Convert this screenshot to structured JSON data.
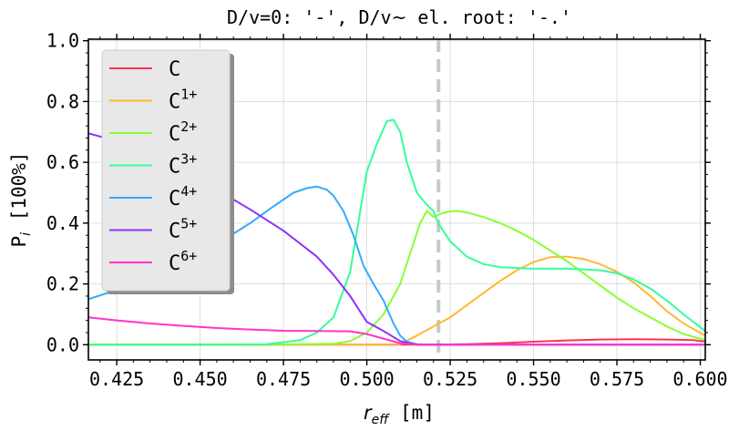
{
  "chart_data": {
    "type": "line",
    "title": "D/v=0: '-', D/v ~ el. root: '-.'",
    "title_prefix": "D/v=0: '-', D/v",
    "title_tilde": "~",
    "title_suffix": " el. root: '-.'",
    "xlabel_main": "r",
    "xlabel_sub": "eff",
    "xlabel_unit": " [m]",
    "ylabel_main": "P",
    "ylabel_sub": "i",
    "ylabel_unit": " [100%]",
    "xlim": [
      0.4165,
      0.6015
    ],
    "ylim": [
      -0.05,
      1.005
    ],
    "xticks": [
      0.425,
      0.45,
      0.475,
      0.5,
      0.525,
      0.55,
      0.575,
      0.6
    ],
    "xtick_labels": [
      "0.425",
      "0.450",
      "0.475",
      "0.500",
      "0.525",
      "0.550",
      "0.575",
      "0.600"
    ],
    "yticks": [
      0.0,
      0.2,
      0.4,
      0.6,
      0.8,
      1.0
    ],
    "ytick_labels": [
      "0.0",
      "0.2",
      "0.4",
      "0.6",
      "0.8",
      "1.0"
    ],
    "grid": true,
    "legend_position": "upper-left",
    "vline": {
      "x": 0.5215,
      "style": "dashed",
      "color": "#c8c8c8"
    },
    "series": [
      {
        "name": "C",
        "base": "C",
        "sup": "",
        "color": "#ff3355",
        "x": [
          0.4165,
          0.45,
          0.48,
          0.5,
          0.51,
          0.52,
          0.53,
          0.54,
          0.55,
          0.56,
          0.57,
          0.58,
          0.59,
          0.598,
          0.6015
        ],
        "y": [
          0.0,
          0.0,
          0.0,
          0.0,
          0.0,
          0.0,
          0.002,
          0.005,
          0.01,
          0.014,
          0.017,
          0.018,
          0.017,
          0.015,
          0.01
        ]
      },
      {
        "name": "C1+",
        "base": "C",
        "sup": "1+",
        "color": "#ffb833",
        "x": [
          0.4165,
          0.5,
          0.51,
          0.515,
          0.52,
          0.525,
          0.53,
          0.535,
          0.54,
          0.545,
          0.55,
          0.555,
          0.56,
          0.565,
          0.57,
          0.575,
          0.58,
          0.585,
          0.59,
          0.595,
          0.6015
        ],
        "y": [
          0.0,
          0.0,
          0.002,
          0.03,
          0.06,
          0.09,
          0.13,
          0.17,
          0.21,
          0.245,
          0.272,
          0.288,
          0.29,
          0.282,
          0.265,
          0.24,
          0.205,
          0.16,
          0.11,
          0.07,
          0.03
        ]
      },
      {
        "name": "C2+",
        "base": "C",
        "sup": "2+",
        "color": "#88ff33",
        "x": [
          0.4165,
          0.47,
          0.49,
          0.495,
          0.5,
          0.505,
          0.51,
          0.513,
          0.516,
          0.518,
          0.52,
          0.522,
          0.524,
          0.527,
          0.53,
          0.535,
          0.54,
          0.545,
          0.55,
          0.555,
          0.56,
          0.565,
          0.57,
          0.575,
          0.58,
          0.585,
          0.59,
          0.595,
          0.6015
        ],
        "y": [
          0.0,
          0.0,
          0.003,
          0.012,
          0.04,
          0.1,
          0.2,
          0.3,
          0.4,
          0.44,
          0.42,
          0.43,
          0.437,
          0.44,
          0.435,
          0.42,
          0.4,
          0.375,
          0.345,
          0.31,
          0.275,
          0.235,
          0.195,
          0.155,
          0.12,
          0.09,
          0.06,
          0.035,
          0.015
        ]
      },
      {
        "name": "C3+",
        "base": "C",
        "sup": "3+",
        "color": "#33ff99",
        "x": [
          0.4165,
          0.47,
          0.48,
          0.485,
          0.49,
          0.495,
          0.5,
          0.503,
          0.506,
          0.508,
          0.51,
          0.512,
          0.515,
          0.518,
          0.52,
          0.521,
          0.522,
          0.525,
          0.53,
          0.535,
          0.54,
          0.55,
          0.56,
          0.565,
          0.57,
          0.575,
          0.58,
          0.585,
          0.59,
          0.595,
          0.6015
        ],
        "y": [
          0.0,
          0.002,
          0.015,
          0.04,
          0.09,
          0.24,
          0.57,
          0.66,
          0.735,
          0.74,
          0.7,
          0.6,
          0.5,
          0.46,
          0.44,
          0.41,
          0.39,
          0.34,
          0.29,
          0.265,
          0.255,
          0.25,
          0.25,
          0.248,
          0.245,
          0.235,
          0.215,
          0.185,
          0.145,
          0.1,
          0.045
        ]
      },
      {
        "name": "C4+",
        "base": "C",
        "sup": "4+",
        "color": "#33aaff",
        "x": [
          0.4165,
          0.425,
          0.435,
          0.445,
          0.455,
          0.465,
          0.472,
          0.478,
          0.482,
          0.485,
          0.488,
          0.49,
          0.493,
          0.496,
          0.499,
          0.502,
          0.505,
          0.508,
          0.51,
          0.512,
          0.515,
          0.52,
          0.6015
        ],
        "y": [
          0.15,
          0.18,
          0.22,
          0.27,
          0.33,
          0.4,
          0.455,
          0.5,
          0.515,
          0.52,
          0.51,
          0.49,
          0.44,
          0.36,
          0.26,
          0.2,
          0.145,
          0.07,
          0.03,
          0.01,
          0.002,
          0.0,
          0.0
        ]
      },
      {
        "name": "C5+",
        "base": "C",
        "sup": "5+",
        "color": "#8833ff",
        "x": [
          0.4165,
          0.425,
          0.435,
          0.445,
          0.455,
          0.465,
          0.475,
          0.485,
          0.49,
          0.495,
          0.5,
          0.505,
          0.51,
          0.515,
          0.6015
        ],
        "y": [
          0.695,
          0.67,
          0.62,
          0.565,
          0.51,
          0.445,
          0.375,
          0.29,
          0.23,
          0.16,
          0.075,
          0.045,
          0.012,
          0.0,
          0.0
        ]
      },
      {
        "name": "C6+",
        "base": "C",
        "sup": "6+",
        "color": "#ff33cc",
        "x": [
          0.4165,
          0.425,
          0.435,
          0.445,
          0.455,
          0.465,
          0.475,
          0.485,
          0.495,
          0.5,
          0.505,
          0.51,
          0.515,
          0.6015
        ],
        "y": [
          0.09,
          0.08,
          0.07,
          0.062,
          0.055,
          0.05,
          0.046,
          0.045,
          0.044,
          0.035,
          0.02,
          0.005,
          0.0,
          0.0
        ]
      }
    ]
  }
}
